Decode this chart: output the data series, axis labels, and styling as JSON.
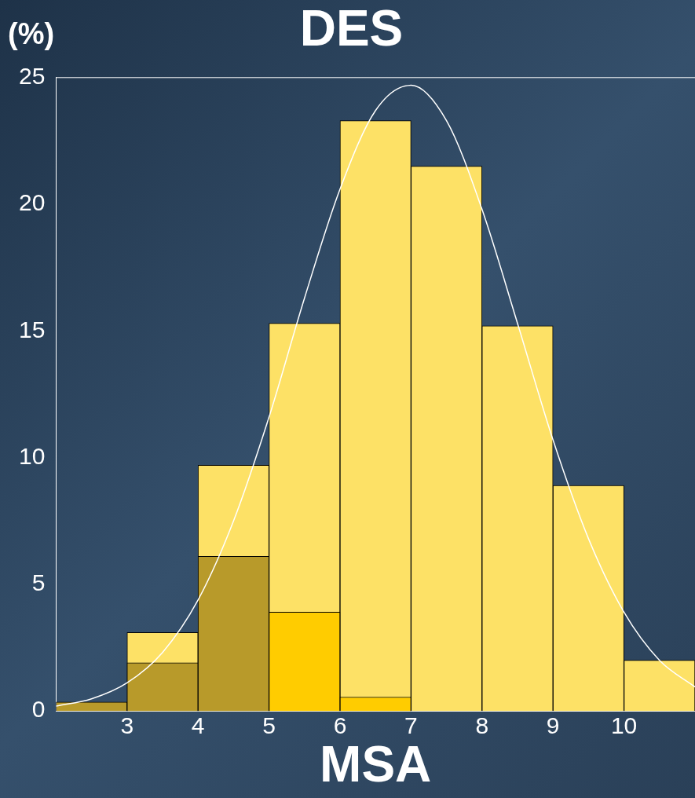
{
  "chart_data": {
    "type": "histogram",
    "title": "DES",
    "xlabel": "MSA",
    "ylabel": "(%)",
    "bins": [
      2,
      3,
      4,
      5,
      6,
      7,
      8,
      9,
      10,
      11
    ],
    "series": [
      {
        "color": "#fde166",
        "values": [
          null,
          3.1,
          9.7,
          15.3,
          23.3,
          21.5,
          15.2,
          8.9,
          2.0
        ]
      },
      {
        "color": "#b89a2a",
        "values": [
          0.35,
          1.9,
          6.1,
          null,
          null,
          null,
          null,
          null,
          null
        ]
      },
      {
        "color": "#ffcc00",
        "values": [
          null,
          null,
          null,
          3.9,
          0.55,
          null,
          null,
          null,
          null
        ]
      },
      {
        "type": "line",
        "color": "#ffffff",
        "x": [
          2,
          2.5,
          3,
          3.5,
          4,
          4.5,
          5,
          5.5,
          6,
          6.5,
          7,
          7.5,
          8,
          8.5,
          9,
          9.5,
          10,
          10.5,
          11
        ],
        "values": [
          0.19,
          0.48,
          1.11,
          2.31,
          4.38,
          7.5,
          11.6,
          16.3,
          20.6,
          23.7,
          24.7,
          23.3,
          19.8,
          15.3,
          10.7,
          6.8,
          3.9,
          2.0,
          0.95
        ]
      }
    ],
    "xlim": [
      2,
      11
    ],
    "xticks": [
      3,
      4,
      5,
      6,
      7,
      8,
      9,
      10
    ],
    "ylim": [
      0,
      25
    ],
    "yticks": [
      0,
      5,
      10,
      15,
      20,
      25
    ],
    "grid": false,
    "legend": false
  }
}
